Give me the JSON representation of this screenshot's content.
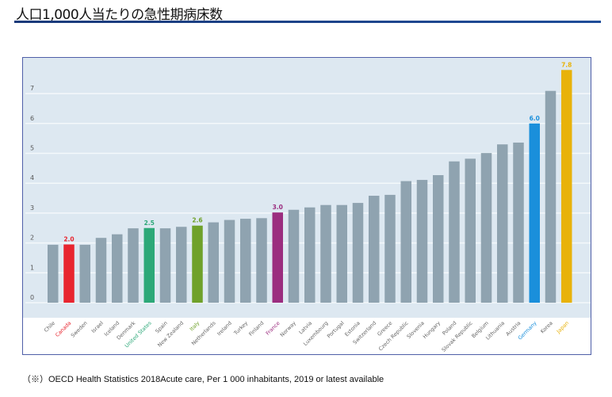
{
  "page": {
    "title": "人口1,000人当たりの急性期病床数",
    "footer": "（※）OECD Health Statistics 2018Acute care, Per 1 000 inhabitants, 2019 or latest available"
  },
  "colors": {
    "default_bar": "#8fa3b0",
    "plot_background": "#dde8f1",
    "gridline": "#f4f8fb",
    "axis_text": "#555555",
    "Canada": "#e8252f",
    "United States": "#2ca878",
    "Italy": "#6fa12a",
    "France": "#9b2d7f",
    "Germany": "#1a8fdb",
    "Japan": "#e8b20a"
  },
  "chart_data": {
    "type": "bar",
    "title": "人口1,000人当たりの急性期病床数",
    "xlabel": "",
    "ylabel": "",
    "ylim": [
      0,
      8
    ],
    "yticks": [
      0,
      1,
      2,
      3,
      4,
      5,
      6,
      7
    ],
    "grid": true,
    "legend": "none",
    "categories": [
      "Chile",
      "Canada",
      "Sweden",
      "Israel",
      "Iceland",
      "Denmark",
      "United States",
      "Spain",
      "New Zealand",
      "Italy",
      "Netherlands",
      "Ireland",
      "Turkey",
      "Finland",
      "France",
      "Norway",
      "Latvia",
      "Luxembourg",
      "Portugal",
      "Estonia",
      "Switzerland",
      "Greece",
      "Czech Republic",
      "Slovenia",
      "Hungary",
      "Poland",
      "Slovak Republic",
      "Belgium",
      "Lithuania",
      "Austria",
      "Germany",
      "Korea",
      "Japan"
    ],
    "values": [
      1.94,
      1.95,
      1.94,
      2.17,
      2.29,
      2.49,
      2.5,
      2.49,
      2.54,
      2.58,
      2.69,
      2.77,
      2.81,
      2.83,
      3.02,
      3.11,
      3.19,
      3.27,
      3.27,
      3.34,
      3.58,
      3.61,
      4.07,
      4.11,
      4.27,
      4.73,
      4.82,
      5.01,
      5.3,
      5.36,
      6.0,
      7.09,
      7.79
    ],
    "data_labels": {
      "Canada": "2.0",
      "United States": "2.5",
      "Italy": "2.6",
      "France": "3.0",
      "Germany": "6.0",
      "Japan": "7.8"
    },
    "highlighted": [
      "Canada",
      "United States",
      "Italy",
      "France",
      "Germany",
      "Japan"
    ]
  }
}
